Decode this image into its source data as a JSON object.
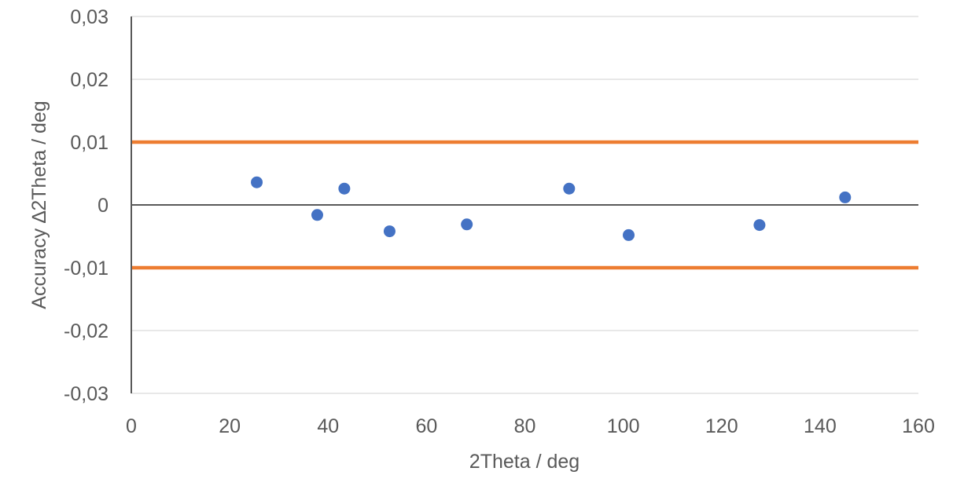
{
  "chart_data": {
    "type": "scatter",
    "title": "",
    "xlabel": "2Theta / deg",
    "ylabel": "Accuracy ∆2Theta / deg",
    "xlim": [
      0,
      160
    ],
    "ylim": [
      -0.03,
      0.03
    ],
    "x_ticks": [
      0,
      20,
      40,
      60,
      80,
      100,
      120,
      140,
      160
    ],
    "x_tick_labels": [
      "0",
      "20",
      "40",
      "60",
      "80",
      "100",
      "120",
      "140",
      "160"
    ],
    "y_ticks": [
      0.03,
      0.02,
      0.01,
      0,
      -0.01,
      -0.02,
      -0.03
    ],
    "y_tick_labels": [
      "0,03",
      "0,02",
      "0,01",
      "0",
      "-0,01",
      "-0,02",
      "-0,03"
    ],
    "grid": true,
    "legend": "none",
    "series": [
      {
        "type": "scatter",
        "color": "#4472C4",
        "points": [
          {
            "x": 25.5,
            "y": 0.0036
          },
          {
            "x": 37.8,
            "y": -0.0016
          },
          {
            "x": 43.3,
            "y": 0.0026
          },
          {
            "x": 52.5,
            "y": -0.0042
          },
          {
            "x": 68.2,
            "y": -0.0031
          },
          {
            "x": 89.0,
            "y": 0.0026
          },
          {
            "x": 101.1,
            "y": -0.0048
          },
          {
            "x": 127.7,
            "y": -0.0032
          },
          {
            "x": 145.1,
            "y": 0.0012
          }
        ]
      },
      {
        "type": "line",
        "color": "#ED7D31",
        "points": [
          {
            "x": 0,
            "y": 0.01
          },
          {
            "x": 160,
            "y": 0.01
          }
        ]
      },
      {
        "type": "line",
        "color": "#ED7D31",
        "points": [
          {
            "x": 0,
            "y": -0.01
          },
          {
            "x": 160,
            "y": -0.01
          }
        ]
      }
    ]
  }
}
